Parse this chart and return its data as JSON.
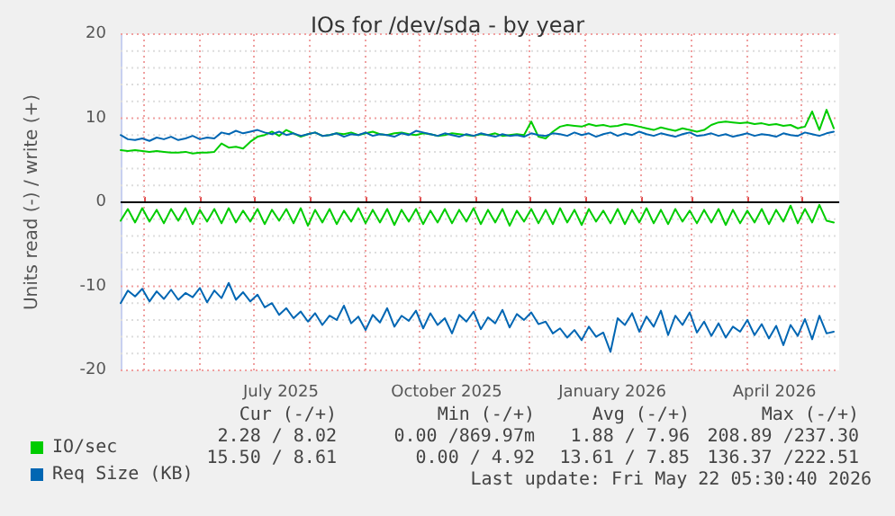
{
  "chart_data": {
    "type": "line",
    "title": "IOs for /dev/sda - by year",
    "ylabel": "Units read (-) / write (+)",
    "x": [
      "2025-04-18",
      "2025-04-22",
      "2025-04-26",
      "2025-04-30",
      "2025-05-04",
      "2025-05-08",
      "2025-05-12",
      "2025-05-16",
      "2025-05-20",
      "2025-05-24",
      "2025-05-28",
      "2025-06-01",
      "2025-06-05",
      "2025-06-09",
      "2025-06-13",
      "2025-06-17",
      "2025-06-21",
      "2025-06-25",
      "2025-06-29",
      "2025-07-03",
      "2025-07-07",
      "2025-07-11",
      "2025-07-15",
      "2025-07-19",
      "2025-07-23",
      "2025-07-27",
      "2025-07-31",
      "2025-08-04",
      "2025-08-08",
      "2025-08-12",
      "2025-08-16",
      "2025-08-20",
      "2025-08-24",
      "2025-08-28",
      "2025-09-01",
      "2025-09-05",
      "2025-09-09",
      "2025-09-13",
      "2025-09-17",
      "2025-09-21",
      "2025-09-25",
      "2025-09-29",
      "2025-10-03",
      "2025-10-07",
      "2025-10-11",
      "2025-10-15",
      "2025-10-19",
      "2025-10-23",
      "2025-10-27",
      "2025-10-31",
      "2025-11-04",
      "2025-11-08",
      "2025-11-12",
      "2025-11-16",
      "2025-11-20",
      "2025-11-24",
      "2025-11-28",
      "2025-12-02",
      "2025-12-06",
      "2025-12-10",
      "2025-12-14",
      "2025-12-18",
      "2025-12-22",
      "2025-12-26",
      "2025-12-30",
      "2026-01-03",
      "2026-01-07",
      "2026-01-11",
      "2026-01-15",
      "2026-01-19",
      "2026-01-23",
      "2026-01-27",
      "2026-01-31",
      "2026-02-04",
      "2026-02-08",
      "2026-02-12",
      "2026-02-16",
      "2026-02-20",
      "2026-02-24",
      "2026-02-28",
      "2026-03-04",
      "2026-03-08",
      "2026-03-12",
      "2026-03-16",
      "2026-03-20",
      "2026-03-24",
      "2026-03-28",
      "2026-04-01",
      "2026-04-05",
      "2026-04-09",
      "2026-04-13",
      "2026-04-17",
      "2026-04-21",
      "2026-04-25",
      "2026-04-29",
      "2026-05-03",
      "2026-05-07",
      "2026-05-11",
      "2026-05-15",
      "2026-05-19"
    ],
    "series": [
      {
        "name": "IO/sec",
        "color": "#00cc00",
        "values": [
          6.2,
          6.1,
          6.2,
          6.1,
          6.0,
          6.1,
          6.0,
          5.9,
          5.9,
          6.0,
          5.8,
          5.9,
          5.9,
          6.0,
          7.0,
          6.5,
          6.6,
          6.4,
          7.2,
          7.8,
          8.0,
          8.4,
          7.9,
          8.6,
          8.2,
          7.8,
          8.1,
          8.3,
          7.9,
          8.0,
          8.2,
          8.1,
          8.3,
          8.0,
          8.2,
          8.4,
          8.1,
          8.0,
          8.2,
          8.3,
          8.1,
          8.0,
          8.2,
          8.1,
          7.9,
          8.0,
          8.2,
          8.1,
          8.0,
          7.9,
          8.1,
          8.0,
          8.2,
          7.9,
          8.0,
          8.1,
          8.0,
          9.6,
          7.8,
          7.6,
          8.4,
          9.0,
          9.2,
          9.1,
          9.0,
          9.3,
          9.1,
          9.2,
          9.0,
          9.1,
          9.3,
          9.2,
          9.0,
          8.8,
          8.6,
          8.9,
          8.7,
          8.5,
          8.8,
          8.6,
          8.4,
          8.6,
          9.2,
          9.5,
          9.6,
          9.5,
          9.4,
          9.5,
          9.3,
          9.4,
          9.2,
          9.3,
          9.1,
          9.2,
          8.8,
          9.0,
          10.8,
          8.6,
          11.0,
          8.8
        ]
      },
      {
        "color": "#00cc00",
        "values": [
          -2.2,
          -0.8,
          -2.4,
          -0.7,
          -2.3,
          -0.9,
          -2.5,
          -0.8,
          -2.2,
          -0.7,
          -2.6,
          -0.9,
          -2.3,
          -0.8,
          -2.5,
          -0.7,
          -2.4,
          -1.0,
          -2.3,
          -0.8,
          -2.6,
          -0.9,
          -2.2,
          -0.8,
          -2.5,
          -0.7,
          -2.8,
          -0.9,
          -2.4,
          -0.8,
          -2.6,
          -1.0,
          -2.3,
          -0.7,
          -2.5,
          -0.9,
          -2.4,
          -0.8,
          -2.7,
          -0.9,
          -2.3,
          -0.8,
          -2.6,
          -1.0,
          -2.4,
          -0.8,
          -2.5,
          -0.9,
          -2.3,
          -0.7,
          -2.6,
          -0.9,
          -2.4,
          -0.8,
          -2.8,
          -1.0,
          -2.3,
          -0.8,
          -2.5,
          -0.9,
          -2.6,
          -0.7,
          -2.4,
          -0.9,
          -2.7,
          -0.8,
          -2.3,
          -1.0,
          -2.5,
          -0.8,
          -2.6,
          -0.9,
          -2.4,
          -0.7,
          -2.5,
          -0.9,
          -2.6,
          -0.8,
          -2.3,
          -1.0,
          -2.5,
          -0.9,
          -2.4,
          -0.8,
          -2.7,
          -0.9,
          -2.5,
          -1.0,
          -2.4,
          -0.8,
          -2.6,
          -0.9,
          -2.3,
          -0.4,
          -2.5,
          -0.8,
          -2.4,
          -0.3,
          -2.2,
          -2.4
        ]
      },
      {
        "name": "Req Size (KB)",
        "color": "#0066b3",
        "values": [
          8.0,
          7.5,
          7.4,
          7.6,
          7.3,
          7.7,
          7.5,
          7.8,
          7.4,
          7.6,
          7.9,
          7.5,
          7.7,
          7.6,
          8.3,
          8.1,
          8.5,
          8.2,
          8.4,
          8.6,
          8.3,
          8.1,
          8.4,
          8.0,
          8.2,
          7.9,
          8.1,
          8.3,
          7.9,
          8.0,
          8.2,
          7.8,
          8.1,
          8.0,
          8.3,
          7.9,
          8.1,
          8.0,
          7.8,
          8.2,
          8.0,
          8.5,
          8.3,
          8.1,
          7.9,
          8.2,
          8.0,
          7.8,
          8.1,
          7.9,
          8.2,
          8.0,
          7.8,
          8.1,
          7.9,
          8.0,
          7.8,
          8.2,
          8.0,
          7.9,
          8.2,
          8.1,
          7.9,
          8.3,
          8.0,
          8.2,
          7.8,
          8.1,
          8.3,
          7.9,
          8.2,
          8.0,
          8.4,
          8.1,
          7.9,
          8.2,
          8.0,
          7.8,
          8.1,
          8.3,
          7.9,
          8.0,
          8.2,
          7.9,
          8.1,
          7.8,
          8.0,
          8.2,
          7.9,
          8.1,
          8.0,
          7.8,
          8.2,
          8.0,
          7.9,
          8.3,
          8.1,
          7.9,
          8.2,
          8.4
        ]
      },
      {
        "color": "#0066b3",
        "values": [
          -12.0,
          -10.5,
          -11.2,
          -10.3,
          -11.8,
          -10.6,
          -11.5,
          -10.4,
          -11.6,
          -10.8,
          -11.3,
          -10.2,
          -11.9,
          -10.5,
          -11.4,
          -9.6,
          -11.6,
          -10.7,
          -11.8,
          -11.0,
          -12.5,
          -12.0,
          -13.4,
          -12.6,
          -13.8,
          -13.0,
          -14.2,
          -13.2,
          -14.6,
          -13.5,
          -14.0,
          -12.3,
          -14.4,
          -13.6,
          -15.2,
          -13.4,
          -14.3,
          -12.6,
          -14.8,
          -13.5,
          -14.1,
          -12.9,
          -15.0,
          -13.2,
          -14.6,
          -13.8,
          -15.6,
          -13.4,
          -14.2,
          -13.0,
          -15.1,
          -13.7,
          -14.4,
          -12.8,
          -14.9,
          -13.3,
          -14.0,
          -13.1,
          -14.5,
          -14.2,
          -15.6,
          -15.0,
          -16.1,
          -15.2,
          -16.4,
          -14.8,
          -16.0,
          -15.5,
          -17.8,
          -13.8,
          -14.6,
          -13.2,
          -15.4,
          -13.6,
          -14.8,
          -12.9,
          -15.8,
          -13.5,
          -14.6,
          -13.1,
          -15.5,
          -14.2,
          -15.9,
          -14.4,
          -16.1,
          -14.8,
          -15.4,
          -14.0,
          -15.8,
          -14.5,
          -16.2,
          -14.7,
          -17.0,
          -14.6,
          -15.9,
          -13.9,
          -16.3,
          -13.5,
          -15.6,
          -15.4
        ]
      }
    ],
    "xlim": [
      "2025-04-18",
      "2026-05-22"
    ],
    "xticks": [
      {
        "value": "2025-05-01",
        "label": null
      },
      {
        "value": "2025-06-01",
        "label": null
      },
      {
        "value": "2025-07-01",
        "label": null
      },
      {
        "value": "2025-07-16",
        "label": "July 2025"
      },
      {
        "value": "2025-08-01",
        "label": null
      },
      {
        "value": "2025-09-01",
        "label": null
      },
      {
        "value": "2025-10-01",
        "label": null
      },
      {
        "value": "2025-10-16",
        "label": "October 2025"
      },
      {
        "value": "2025-11-01",
        "label": null
      },
      {
        "value": "2025-12-01",
        "label": null
      },
      {
        "value": "2026-01-01",
        "label": null
      },
      {
        "value": "2026-01-16",
        "label": "January 2026"
      },
      {
        "value": "2026-02-01",
        "label": null
      },
      {
        "value": "2026-03-01",
        "label": null
      },
      {
        "value": "2026-04-01",
        "label": null
      },
      {
        "value": "2026-04-16",
        "label": "April 2026"
      },
      {
        "value": "2026-05-01",
        "label": null
      }
    ],
    "ylim": [
      -20,
      20
    ],
    "yticks": [
      -20,
      {
        "value": -18,
        "label": null
      },
      {
        "value": -16,
        "label": null
      },
      {
        "value": -14,
        "label": null
      },
      {
        "value": -12,
        "label": null
      },
      -10,
      {
        "value": -8,
        "label": null
      },
      {
        "value": -6,
        "label": null
      },
      {
        "value": -4,
        "label": null
      },
      {
        "value": -2,
        "label": null
      },
      0,
      {
        "value": 2,
        "label": null
      },
      {
        "value": 4,
        "label": null
      },
      {
        "value": 6,
        "label": null
      },
      {
        "value": 8,
        "label": null
      },
      10,
      {
        "value": 12,
        "label": null
      },
      {
        "value": 14,
        "label": null
      },
      {
        "value": 16,
        "label": null
      },
      {
        "value": 18,
        "label": null
      },
      20
    ],
    "ref_lines": [
      {
        "axis": "y",
        "value": 0,
        "color": "#000000",
        "line_style": "solid"
      }
    ],
    "grid": true,
    "legend": "bottom left",
    "marker": "none",
    "line_style": "solid",
    "annotations": [
      "Cur (-/+)",
      "Min (-/+)",
      "Avg (-/+)",
      "Max (-/+)",
      "2.28 / 8.02",
      "0.00 /869.97m",
      "1.88 / 7.96",
      "208.89 /237.30",
      "15.50 / 8.61",
      "0.00 / 4.92",
      "13.61 / 7.85",
      "136.37 /222.51",
      "Last update: Fri May 22 05:30:40 2026"
    ]
  }
}
